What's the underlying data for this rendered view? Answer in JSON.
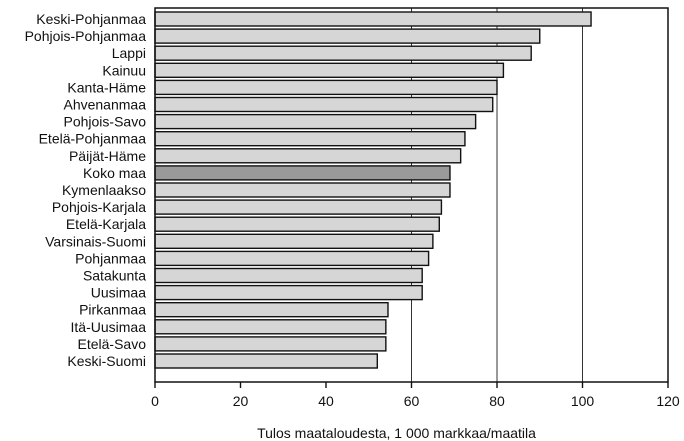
{
  "chart_data": {
    "type": "bar",
    "orientation": "horizontal",
    "categories": [
      "Keski-Pohjanmaa",
      "Pohjois-Pohjanmaa",
      "Lappi",
      "Kainuu",
      "Kanta-Häme",
      "Ahvenanmaa",
      "Pohjois-Savo",
      "Etelä-Pohjanmaa",
      "Päijät-Häme",
      "Koko maa",
      "Kymenlaakso",
      "Pohjois-Karjala",
      "Etelä-Karjala",
      "Varsinais-Suomi",
      "Pohjanmaa",
      "Satakunta",
      "Uusimaa",
      "Pirkanmaa",
      "Itä-Uusimaa",
      "Etelä-Savo",
      "Keski-Suomi"
    ],
    "values": [
      102,
      90,
      88,
      81.5,
      80,
      79,
      75,
      72.5,
      71.5,
      69,
      69,
      67,
      66.5,
      65,
      64,
      62.5,
      62.5,
      54.5,
      54,
      54,
      52
    ],
    "highlight_category": "Koko maa",
    "xlabel": "Tulos maataloudesta, 1 000 markkaa/maatila",
    "xlim": [
      0,
      120
    ],
    "xticks": [
      "0",
      "20",
      "40",
      "60",
      "80",
      "100",
      "120"
    ],
    "vertical_gridlines_at": [
      60,
      80,
      100
    ],
    "colors": {
      "bar_fill": "#d6d6d6",
      "highlight_fill": "#9a9a9a",
      "bar_stroke": "#111111"
    }
  }
}
